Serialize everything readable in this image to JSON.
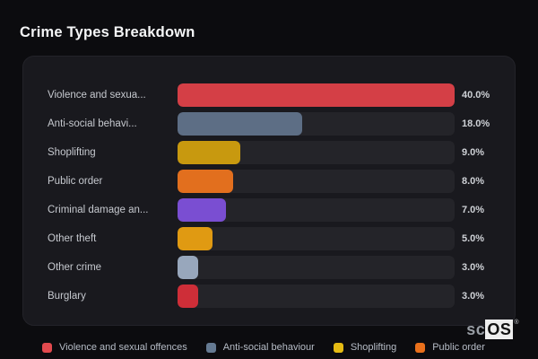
{
  "title": "Crime Types Breakdown",
  "chart_data": {
    "type": "bar",
    "orientation": "horizontal",
    "title": "Crime Types Breakdown",
    "value_unit": "%",
    "max_value": 40,
    "grid": false,
    "items": [
      {
        "label": "Violence and sexua...",
        "value": 40,
        "value_label": "40.0%",
        "color": "#d43f46"
      },
      {
        "label": "Anti-social behavi...",
        "value": 18,
        "value_label": "18.0%",
        "color": "#5d6e85"
      },
      {
        "label": "Shoplifting",
        "value": 9,
        "value_label": "9.0%",
        "color": "#c8990f"
      },
      {
        "label": "Public order",
        "value": 8,
        "value_label": "8.0%",
        "color": "#e26f1e"
      },
      {
        "label": "Criminal damage an...",
        "value": 7,
        "value_label": "7.0%",
        "color": "#7a4ed2"
      },
      {
        "label": "Other theft",
        "value": 5,
        "value_label": "5.0%",
        "color": "#e09a12"
      },
      {
        "label": "Other crime",
        "value": 3,
        "value_label": "3.0%",
        "color": "#98a7bc"
      },
      {
        "label": "Burglary",
        "value": 3,
        "value_label": "3.0%",
        "color": "#ce2e38"
      }
    ]
  },
  "legend": {
    "position": "bottom",
    "items": [
      {
        "label": "Violence and sexual offences",
        "color": "#e24a4e"
      },
      {
        "label": "Anti-social behaviour",
        "color": "#657a92"
      },
      {
        "label": "Shoplifting",
        "color": "#e5bb13"
      },
      {
        "label": "Public order",
        "color": "#ea701b"
      }
    ]
  },
  "watermark": {
    "prefix": "sc",
    "suffix": "OS",
    "registered": "®"
  },
  "colors": {
    "page_bg": "#0c0c0f",
    "card_bg": "#19191e",
    "card_border": "#232329",
    "bar_track": "#242429",
    "title_text": "#f5f6f7",
    "label_text": "#c6c9cf",
    "value_text": "#ced1d6",
    "legend_text": "#b6bcc6"
  }
}
